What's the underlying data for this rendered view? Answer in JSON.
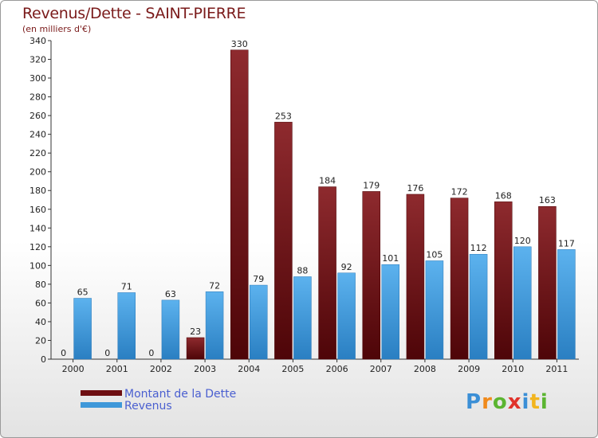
{
  "header": {
    "title": "Revenus/Dette - SAINT-PIERRE",
    "subtitle": "(en milliers d'€)"
  },
  "colors": {
    "debt": "#6e0f12",
    "revenue": "#3f98d9",
    "title": "#7a1a1a",
    "legend_text": "#4a5fd0"
  },
  "chart_data": {
    "type": "bar",
    "title": "Revenus/Dette - SAINT-PIERRE",
    "subtitle": "(en milliers d'€)",
    "xlabel": "",
    "ylabel": "",
    "ylim": [
      0,
      340
    ],
    "y_ticks": [
      0,
      20,
      40,
      60,
      80,
      100,
      120,
      140,
      160,
      180,
      200,
      220,
      240,
      260,
      280,
      300,
      320,
      340
    ],
    "grid": false,
    "legend_position": "bottom-left",
    "categories": [
      "2000",
      "2001",
      "2002",
      "2003",
      "2004",
      "2005",
      "2006",
      "2007",
      "2008",
      "2009",
      "2010",
      "2011"
    ],
    "series": [
      {
        "name": "Montant de la Dette",
        "values": [
          0,
          0,
          0,
          23,
          330,
          253,
          184,
          179,
          176,
          172,
          168,
          163
        ]
      },
      {
        "name": "Revenus",
        "values": [
          65,
          71,
          63,
          72,
          79,
          88,
          92,
          101,
          105,
          112,
          120,
          117
        ]
      }
    ]
  },
  "legend": {
    "items": [
      {
        "label": "Montant de la Dette",
        "color": "#6e0f12"
      },
      {
        "label": "Revenus",
        "color": "#3f98d9"
      }
    ]
  },
  "logo": {
    "letters": [
      {
        "char": "P",
        "color": "#3b8fd6"
      },
      {
        "char": "r",
        "color": "#f08a1c"
      },
      {
        "char": "o",
        "color": "#5bb531"
      },
      {
        "char": "x",
        "color": "#e0332b"
      },
      {
        "char": "i",
        "color": "#3b8fd6"
      },
      {
        "char": "t",
        "color": "#f2b51f"
      },
      {
        "char": "i",
        "color": "#5bb531"
      }
    ]
  }
}
